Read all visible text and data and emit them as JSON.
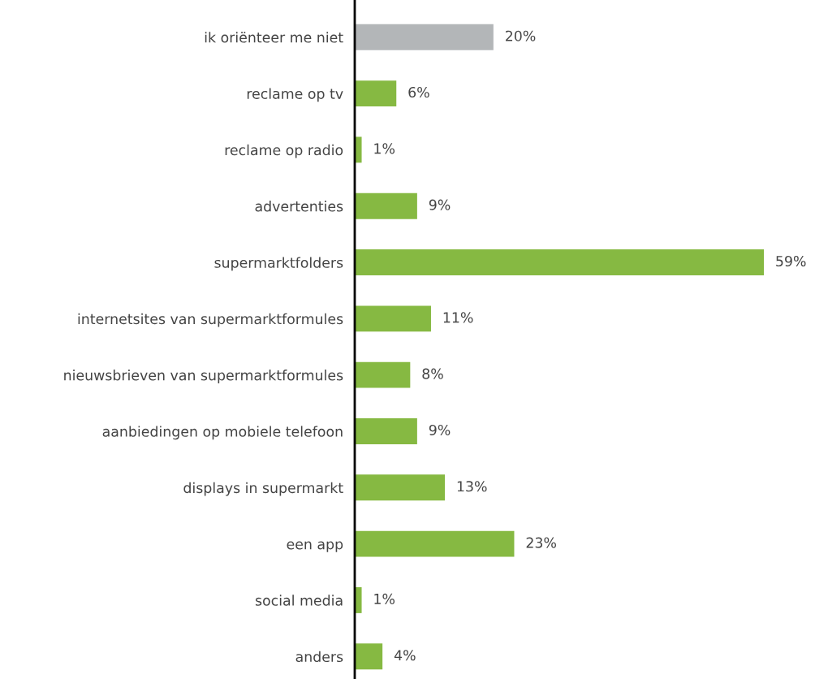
{
  "chart_data": {
    "type": "bar",
    "orientation": "horizontal",
    "categories": [
      "ik oriënteer me niet",
      "reclame op tv",
      "reclame op radio",
      "advertenties",
      "supermarktfolders",
      "internetsites van supermarktformules",
      "nieuwsbrieven van supermarktformules",
      "aanbiedingen op mobiele telefoon",
      "displays in supermarkt",
      "een app",
      "social media",
      "anders"
    ],
    "values": [
      20,
      6,
      1,
      9,
      59,
      11,
      8,
      9,
      13,
      23,
      1,
      4
    ],
    "value_labels": [
      "20%",
      "6%",
      "1%",
      "9%",
      "59%",
      "11%",
      "8%",
      "9%",
      "13%",
      "23%",
      "1%",
      "4%"
    ],
    "colors": [
      "#b3b6b8",
      "#86b942",
      "#86b942",
      "#86b942",
      "#86b942",
      "#86b942",
      "#86b942",
      "#86b942",
      "#86b942",
      "#86b942",
      "#86b942",
      "#86b942"
    ],
    "grid": false,
    "legend": false
  }
}
